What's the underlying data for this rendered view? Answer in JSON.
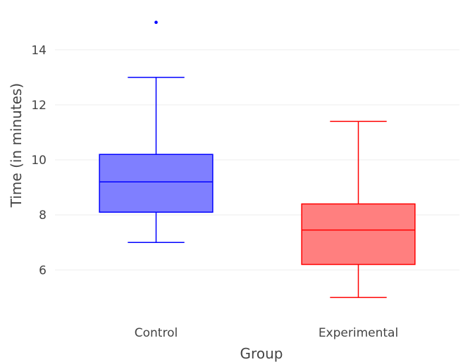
{
  "chart_data": {
    "type": "box",
    "title": "",
    "xlabel": "Group",
    "ylabel": "Time (in minutes)",
    "ylim": [
      4.6,
      15.3
    ],
    "yticks": [
      6,
      8,
      10,
      12,
      14
    ],
    "grid": "horizontal",
    "categories": [
      "Control",
      "Experimental"
    ],
    "boxes": [
      {
        "category": "Control",
        "min": 7.0,
        "q1": 8.1,
        "median": 9.2,
        "q3": 10.2,
        "max": 13.0,
        "outliers": [
          15.0
        ],
        "color": "#0000ff",
        "fill": "#7f7fff"
      },
      {
        "category": "Experimental",
        "min": 5.0,
        "q1": 6.2,
        "median": 7.45,
        "q3": 8.4,
        "max": 11.4,
        "outliers": [],
        "color": "#ff0000",
        "fill": "#ff7f7f"
      }
    ]
  }
}
